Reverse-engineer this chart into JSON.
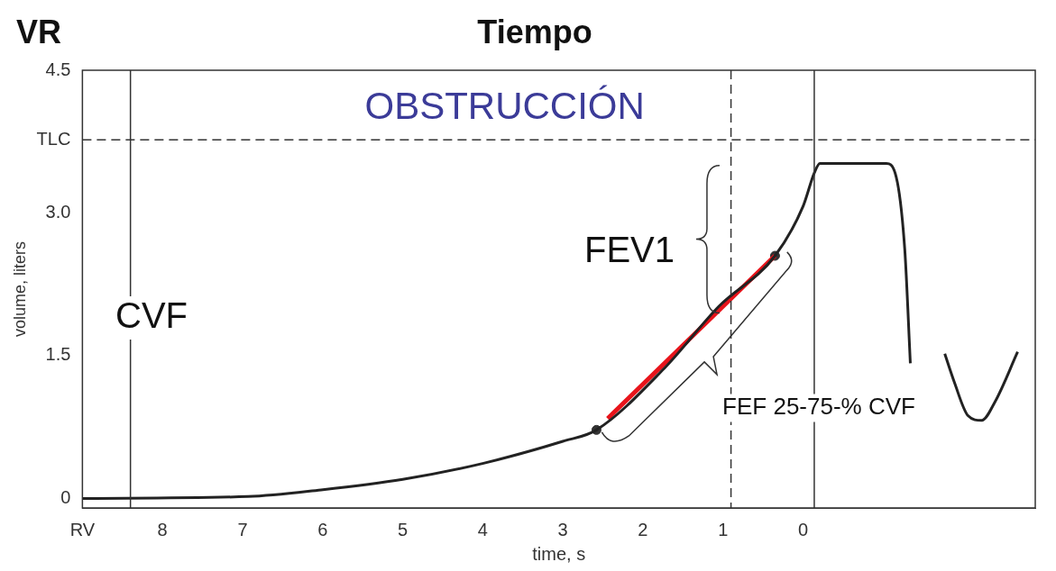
{
  "chart_data": {
    "type": "line",
    "title": "OBSTRUCCIÓN",
    "xlabel": "time, s",
    "ylabel": "volume, liters",
    "annotations": [
      "VR",
      "Tiempo",
      "CVF",
      "FEV1",
      "FEF 25-75-% CVF"
    ],
    "xlim": [
      9,
      -2.9
    ],
    "xticks": [
      {
        "value": 9,
        "label": "RV"
      },
      8,
      7,
      6,
      5,
      4,
      3,
      2,
      1,
      0
    ],
    "ylim": [
      -0.1,
      4.5
    ],
    "yticks": [
      0,
      1.5,
      {
        "value": 3.0,
        "label": "3.0"
      },
      {
        "value": 3.77,
        "label": "TLC"
      },
      4.5
    ],
    "grid": false,
    "legend": false,
    "series": [
      {
        "type": "line",
        "color": "#222222",
        "x": [
          9,
          6.93,
          6.02,
          5.0,
          3.99,
          3.0,
          2.58,
          1.73,
          1.05,
          0.35,
          0,
          -0.14,
          -0.21,
          -1.04,
          -1.15,
          -1.27,
          -1.34
        ],
        "values": [
          0,
          0.02,
          0.09,
          0.2,
          0.37,
          0.6,
          0.72,
          1.37,
          2.02,
          2.55,
          3.07,
          3.42,
          3.52,
          3.52,
          3.42,
          2.62,
          1.42
        ]
      },
      {
        "type": "line",
        "color": "#222222",
        "x": [
          -1.77,
          -1.89,
          -2.06,
          -2.23,
          -2.4,
          -2.68
        ],
        "values": [
          1.52,
          1.22,
          0.87,
          0.82,
          1.02,
          1.54
        ]
      },
      {
        "type": "line",
        "color": "#e8141b",
        "x": [
          2.44,
          0.35
        ],
        "values": [
          0.84,
          2.55
        ]
      },
      {
        "type": "scatter",
        "color": "#333333",
        "marker": "circle",
        "x": [
          2.58,
          0.35
        ],
        "values": [
          0.72,
          2.55
        ]
      }
    ],
    "ref_lines": [
      {
        "axis": "y",
        "value": 3.77,
        "line_style": "dashed"
      },
      {
        "axis": "x",
        "value": 0.9,
        "line_style": "dashed"
      },
      {
        "axis": "x",
        "value": -0.14,
        "line_style": "solid"
      },
      {
        "axis": "x",
        "value": 8.4,
        "line_style": "solid"
      }
    ]
  }
}
